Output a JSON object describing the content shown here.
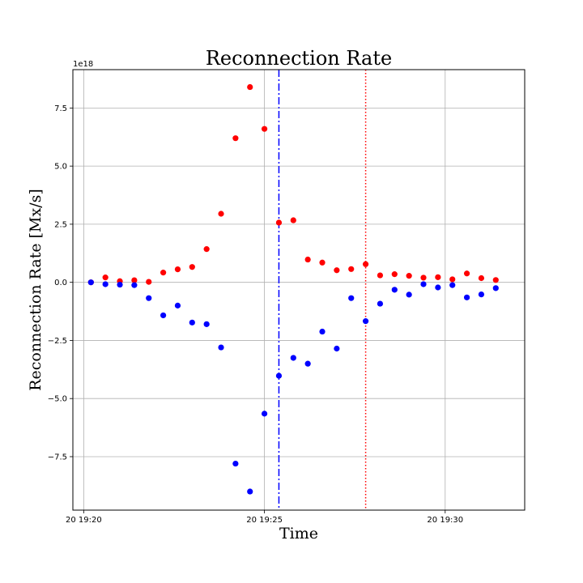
{
  "chart_data": {
    "type": "scatter",
    "title": "Reconnection Rate",
    "xlabel": "Time",
    "ylabel": "Reconnection Rate [Mx/s]",
    "y_offset_label": "1e18",
    "y_scale": 1e+18,
    "grid": true,
    "x_range_minutes": [
      "19:19:42",
      "19:32:12"
    ],
    "ylim": [
      -9.8e+18,
      9.15e+18
    ],
    "x_ticks": [
      {
        "time": "19:20",
        "label": "20 19:20"
      },
      {
        "time": "19:25",
        "label": "20 19:25"
      },
      {
        "time": "19:30",
        "label": "20 19:30"
      }
    ],
    "y_ticks": [
      {
        "value": 7.5e+18,
        "label": "7.5"
      },
      {
        "value": 5e+18,
        "label": "5.0"
      },
      {
        "value": 2.5e+18,
        "label": "2.5"
      },
      {
        "value": 0,
        "label": "0.0"
      },
      {
        "value": -2.5e+18,
        "label": "−2.5"
      },
      {
        "value": -5e+18,
        "label": "−5.0"
      },
      {
        "value": -7.5e+18,
        "label": "−7.5"
      }
    ],
    "series": [
      {
        "color": "#ff0000",
        "points": [
          {
            "x": "19:20:12",
            "y": 0.0
          },
          {
            "x": "19:20:36",
            "y": 2.1e+17
          },
          {
            "x": "19:21:00",
            "y": 5e+16
          },
          {
            "x": "19:21:24",
            "y": 9e+16
          },
          {
            "x": "19:21:48",
            "y": 2e+16
          },
          {
            "x": "19:22:12",
            "y": 4.2e+17
          },
          {
            "x": "19:22:36",
            "y": 5.6e+17
          },
          {
            "x": "19:23:00",
            "y": 6.6e+17
          },
          {
            "x": "19:23:24",
            "y": 1.43e+18
          },
          {
            "x": "19:23:48",
            "y": 2.95e+18
          },
          {
            "x": "19:24:12",
            "y": 6.2e+18
          },
          {
            "x": "19:24:36",
            "y": 8.4e+18
          },
          {
            "x": "19:25:00",
            "y": 6.6e+18
          },
          {
            "x": "19:25:24",
            "y": 2.57e+18
          },
          {
            "x": "19:25:48",
            "y": 2.67e+18
          },
          {
            "x": "19:26:12",
            "y": 9.8e+17
          },
          {
            "x": "19:26:36",
            "y": 8.5e+17
          },
          {
            "x": "19:27:00",
            "y": 5.2e+17
          },
          {
            "x": "19:27:24",
            "y": 5.7e+17
          },
          {
            "x": "19:27:48",
            "y": 7.8e+17
          },
          {
            "x": "19:28:12",
            "y": 3e+17
          },
          {
            "x": "19:28:36",
            "y": 3.5e+17
          },
          {
            "x": "19:29:00",
            "y": 2.8e+17
          },
          {
            "x": "19:29:24",
            "y": 2e+17
          },
          {
            "x": "19:29:48",
            "y": 2.2e+17
          },
          {
            "x": "19:30:12",
            "y": 1.3e+17
          },
          {
            "x": "19:30:36",
            "y": 3.8e+17
          },
          {
            "x": "19:31:00",
            "y": 1.8e+17
          },
          {
            "x": "19:31:24",
            "y": 1e+17
          }
        ]
      },
      {
        "color": "#0000ff",
        "points": [
          {
            "x": "19:20:12",
            "y": 0.0
          },
          {
            "x": "19:20:36",
            "y": -8e+16
          },
          {
            "x": "19:21:00",
            "y": -1e+17
          },
          {
            "x": "19:21:24",
            "y": -1.2e+17
          },
          {
            "x": "19:21:48",
            "y": -6.8e+17
          },
          {
            "x": "19:22:12",
            "y": -1.42e+18
          },
          {
            "x": "19:22:36",
            "y": -1e+18
          },
          {
            "x": "19:23:00",
            "y": -1.73e+18
          },
          {
            "x": "19:23:24",
            "y": -1.8e+18
          },
          {
            "x": "19:23:48",
            "y": -2.8e+18
          },
          {
            "x": "19:24:12",
            "y": -7.8e+18
          },
          {
            "x": "19:24:36",
            "y": -9e+18
          },
          {
            "x": "19:25:00",
            "y": -5.65e+18
          },
          {
            "x": "19:25:24",
            "y": -4.02e+18
          },
          {
            "x": "19:25:48",
            "y": -3.25e+18
          },
          {
            "x": "19:26:12",
            "y": -3.5e+18
          },
          {
            "x": "19:26:36",
            "y": -2.12e+18
          },
          {
            "x": "19:27:00",
            "y": -2.85e+18
          },
          {
            "x": "19:27:24",
            "y": -6.8e+17
          },
          {
            "x": "19:27:48",
            "y": -1.67e+18
          },
          {
            "x": "19:28:12",
            "y": -9.2e+17
          },
          {
            "x": "19:28:36",
            "y": -3.2e+17
          },
          {
            "x": "19:29:00",
            "y": -5.3e+17
          },
          {
            "x": "19:29:24",
            "y": -8e+16
          },
          {
            "x": "19:29:48",
            "y": -2.2e+17
          },
          {
            "x": "19:30:12",
            "y": -1.2e+17
          },
          {
            "x": "19:30:36",
            "y": -6.5e+17
          },
          {
            "x": "19:31:00",
            "y": -5.2e+17
          },
          {
            "x": "19:31:24",
            "y": -2.5e+17
          }
        ]
      }
    ],
    "vertical_lines": [
      {
        "x": "19:25:24",
        "style": "dashdot",
        "color": "#0000ff"
      },
      {
        "x": "19:27:48",
        "style": "dotted",
        "color": "#ff0000"
      }
    ]
  }
}
